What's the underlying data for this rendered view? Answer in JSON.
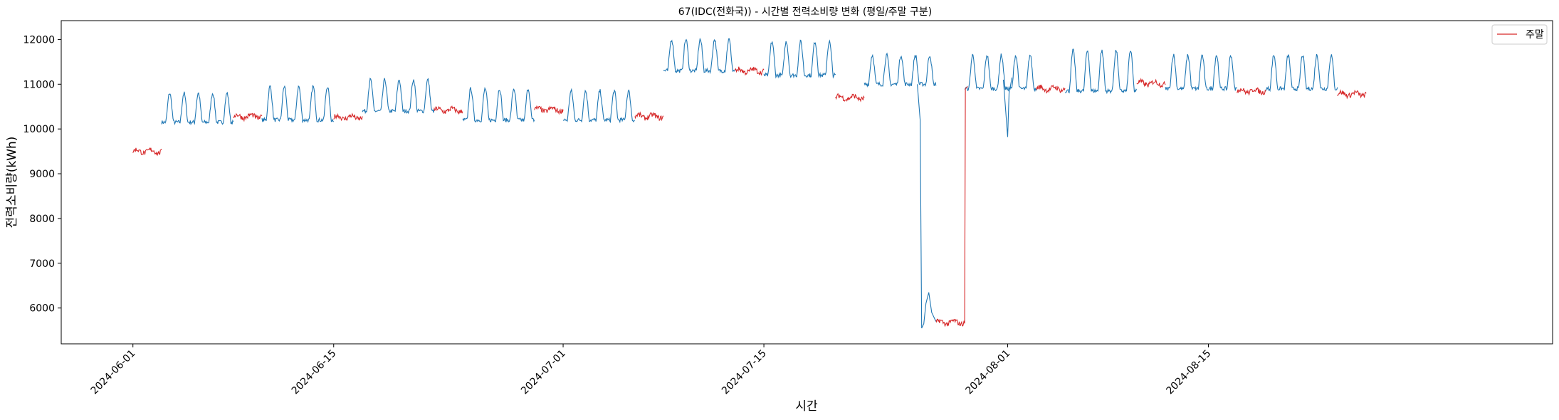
{
  "chart_data": {
    "type": "line",
    "title": "67(IDC(전화국)) - 시간별 전력소비량 변화 (평일/주말 구분)",
    "xlabel": "시간",
    "ylabel": "전력소비량(kWh)",
    "x_range": [
      "2024-05-27",
      "2024-09-08"
    ],
    "ylim": [
      5200,
      12420
    ],
    "y_ticks": [
      6000,
      7000,
      8000,
      9000,
      10000,
      11000,
      12000
    ],
    "x_ticks": [
      "2024-06-01",
      "2024-06-15",
      "2024-07-01",
      "2024-07-15",
      "2024-08-01",
      "2024-08-15"
    ],
    "grid": false,
    "legend": {
      "position": "top-right",
      "entries": [
        "주말"
      ]
    },
    "series": [
      {
        "name": "주말",
        "color": "#d62728",
        "segments": [
          {
            "start": "2024-06-01",
            "end": "2024-06-03",
            "level": 9500
          },
          {
            "start": "2024-06-08",
            "end": "2024-06-10",
            "level": 10280
          },
          {
            "start": "2024-06-15",
            "end": "2024-06-17",
            "level": 10260
          },
          {
            "start": "2024-06-22",
            "end": "2024-06-24",
            "level": 10420
          },
          {
            "start": "2024-06-29",
            "end": "2024-07-01",
            "level": 10430
          },
          {
            "start": "2024-07-06",
            "end": "2024-07-08",
            "level": 10280
          },
          {
            "start": "2024-07-13",
            "end": "2024-07-15",
            "level": 11300
          },
          {
            "start": "2024-07-20",
            "end": "2024-07-22",
            "level": 10700
          },
          {
            "start": "2024-07-27",
            "end": "2024-07-29",
            "level": 5680
          },
          {
            "start": "2024-08-03",
            "end": "2024-08-05",
            "level": 10900
          },
          {
            "start": "2024-08-10",
            "end": "2024-08-12",
            "level": 11020
          },
          {
            "start": "2024-08-17",
            "end": "2024-08-19",
            "level": 10850
          },
          {
            "start": "2024-08-24",
            "end": "2024-08-26",
            "level": 10780
          }
        ]
      },
      {
        "color": "#1f77b4",
        "weekday_blocks": [
          {
            "start": "2024-06-03",
            "end": "2024-06-08",
            "base": 10150,
            "peak": 10800
          },
          {
            "start": "2024-06-10",
            "end": "2024-06-15",
            "base": 10200,
            "peak": 10950
          },
          {
            "start": "2024-06-17",
            "end": "2024-06-22",
            "base": 10400,
            "peak": 11100
          },
          {
            "start": "2024-06-24",
            "end": "2024-06-29",
            "base": 10200,
            "peak": 10900
          },
          {
            "start": "2024-07-01",
            "end": "2024-07-06",
            "base": 10200,
            "peak": 10850
          },
          {
            "start": "2024-07-08",
            "end": "2024-07-13",
            "base": 11300,
            "peak": 12000
          },
          {
            "start": "2024-07-15",
            "end": "2024-07-20",
            "base": 11200,
            "peak": 11950
          },
          {
            "start": "2024-07-22",
            "end": "2024-07-27",
            "base": 11000,
            "peak": 11650
          },
          {
            "start": "2024-07-29",
            "end": "2024-08-03",
            "base": 10900,
            "peak": 11650
          },
          {
            "start": "2024-08-05",
            "end": "2024-08-10",
            "base": 10850,
            "peak": 11750
          },
          {
            "start": "2024-08-12",
            "end": "2024-08-17",
            "base": 10900,
            "peak": 11650
          },
          {
            "start": "2024-08-19",
            "end": "2024-08-24",
            "base": 10900,
            "peak": 11650
          }
        ],
        "events": [
          {
            "date": "2024-07-26",
            "value": 5550,
            "note": "drop"
          },
          {
            "date": "2024-08-01",
            "value": 9820,
            "note": "dip"
          }
        ]
      }
    ]
  }
}
